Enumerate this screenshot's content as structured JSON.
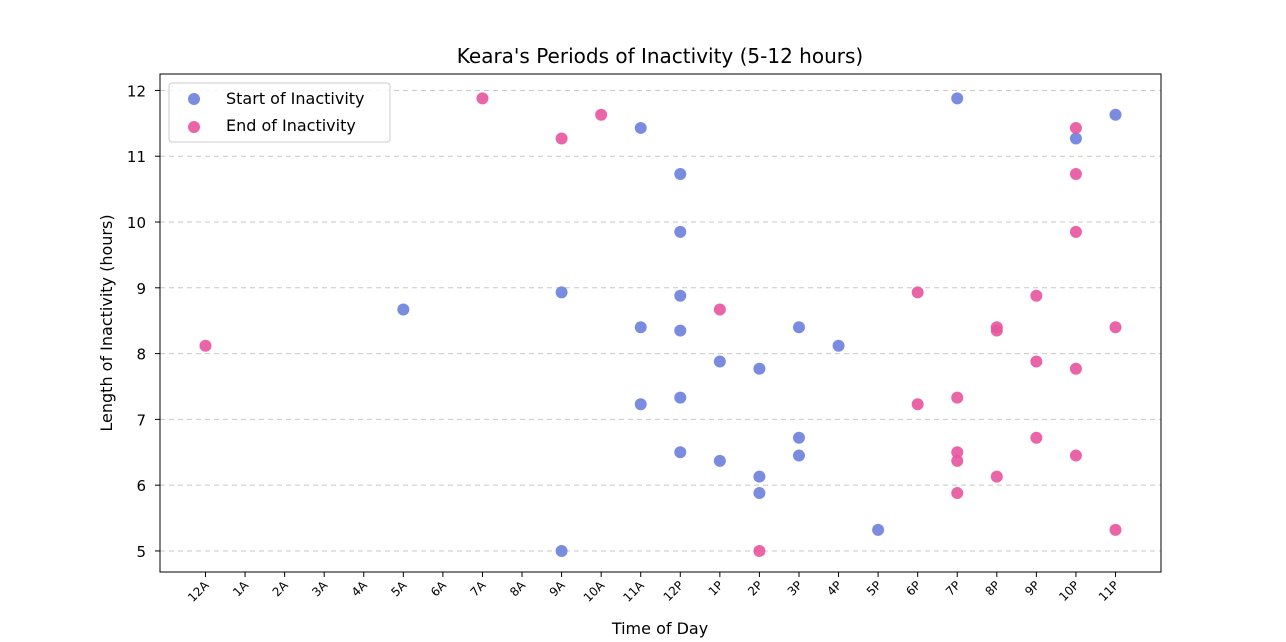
{
  "chart_data": {
    "type": "scatter",
    "title": "Keara's Periods of Inactivity (5-12 hours)",
    "xlabel": "Time of Day",
    "ylabel": "Length of Inactivity (hours)",
    "x_tick_labels": [
      "12A",
      "1A",
      "2A",
      "3A",
      "4A",
      "5A",
      "6A",
      "7A",
      "8A",
      "9A",
      "10A",
      "11A",
      "12P",
      "1P",
      "2P",
      "3P",
      "4P",
      "5P",
      "6P",
      "7P",
      "8P",
      "9P",
      "10P",
      "11P"
    ],
    "y_ticks": [
      5,
      6,
      7,
      8,
      9,
      10,
      11,
      12
    ],
    "ylim": [
      4.68,
      12.25
    ],
    "xlim": [
      -1.15,
      24.15
    ],
    "grid": "horizontal dashed",
    "legend_position": "upper-left",
    "series": [
      {
        "name": "Start of Inactivity",
        "color": "#6b7fdc",
        "points": [
          {
            "x": "5A",
            "y": 8.67
          },
          {
            "x": "9A",
            "y": 8.93
          },
          {
            "x": "9A",
            "y": 5.0
          },
          {
            "x": "11A",
            "y": 11.43
          },
          {
            "x": "11A",
            "y": 8.4
          },
          {
            "x": "11A",
            "y": 7.23
          },
          {
            "x": "12P",
            "y": 10.73
          },
          {
            "x": "12P",
            "y": 9.85
          },
          {
            "x": "12P",
            "y": 8.88
          },
          {
            "x": "12P",
            "y": 8.35
          },
          {
            "x": "12P",
            "y": 7.33
          },
          {
            "x": "12P",
            "y": 6.5
          },
          {
            "x": "1P",
            "y": 7.88
          },
          {
            "x": "1P",
            "y": 6.37
          },
          {
            "x": "2P",
            "y": 7.77
          },
          {
            "x": "2P",
            "y": 6.13
          },
          {
            "x": "2P",
            "y": 5.88
          },
          {
            "x": "3P",
            "y": 8.4
          },
          {
            "x": "3P",
            "y": 6.72
          },
          {
            "x": "3P",
            "y": 6.45
          },
          {
            "x": "4P",
            "y": 8.12
          },
          {
            "x": "5P",
            "y": 5.32
          },
          {
            "x": "7P",
            "y": 11.88
          },
          {
            "x": "10P",
            "y": 11.27
          },
          {
            "x": "11P",
            "y": 11.63
          }
        ]
      },
      {
        "name": "End of Inactivity",
        "color": "#e8549f",
        "points": [
          {
            "x": "12A",
            "y": 8.12
          },
          {
            "x": "7A",
            "y": 11.88
          },
          {
            "x": "9A",
            "y": 11.27
          },
          {
            "x": "10A",
            "y": 11.63
          },
          {
            "x": "1P",
            "y": 8.67
          },
          {
            "x": "2P",
            "y": 5.0
          },
          {
            "x": "6P",
            "y": 8.93
          },
          {
            "x": "6P",
            "y": 7.23
          },
          {
            "x": "7P",
            "y": 7.33
          },
          {
            "x": "7P",
            "y": 6.5
          },
          {
            "x": "7P",
            "y": 6.37
          },
          {
            "x": "7P",
            "y": 5.88
          },
          {
            "x": "8P",
            "y": 8.4
          },
          {
            "x": "8P",
            "y": 8.35
          },
          {
            "x": "8P",
            "y": 6.13
          },
          {
            "x": "9P",
            "y": 8.88
          },
          {
            "x": "9P",
            "y": 7.88
          },
          {
            "x": "9P",
            "y": 6.72
          },
          {
            "x": "10P",
            "y": 11.43
          },
          {
            "x": "10P",
            "y": 10.73
          },
          {
            "x": "10P",
            "y": 9.85
          },
          {
            "x": "10P",
            "y": 7.77
          },
          {
            "x": "10P",
            "y": 6.45
          },
          {
            "x": "11P",
            "y": 8.4
          },
          {
            "x": "11P",
            "y": 5.32
          }
        ]
      }
    ]
  }
}
